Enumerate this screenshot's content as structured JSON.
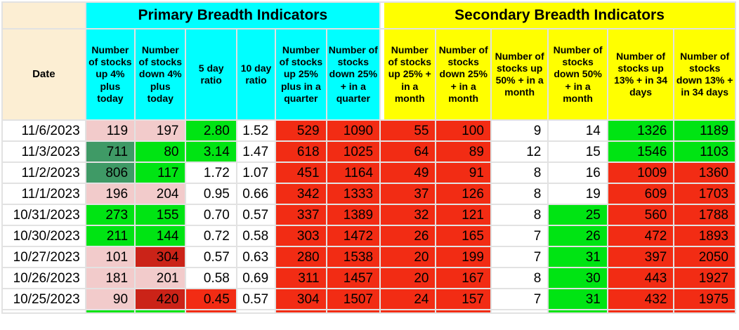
{
  "colors": {
    "pink": "#f2cbcb",
    "green": "#00e413",
    "seagreen": "#3f9a66",
    "red": "#f22c14",
    "darkred": "#cb2318",
    "white": "#ffffff",
    "cyan": "#00ffff",
    "yellow": "#ffff00",
    "tan": "#fceed3"
  },
  "table": {
    "sections": [
      {
        "title": "Primary Breadth Indicators",
        "color": "#00ffff"
      },
      {
        "title": "Secondary Breadth Indicators",
        "color": "#ffff00"
      }
    ],
    "date_header": "Date",
    "columns": [
      {
        "label": "Number of stocks up 4% plus today",
        "section": "primary"
      },
      {
        "label": "Number of stocks down 4% plus today",
        "section": "primary"
      },
      {
        "label": "5 day ratio",
        "section": "primary"
      },
      {
        "label": "10 day ratio",
        "section": "primary"
      },
      {
        "label": "Number of stocks up 25% plus in a quarter",
        "section": "primary"
      },
      {
        "label": "Number of stocks down 25% + in a quarter",
        "section": "primary"
      },
      {
        "label": "Number of stocks up 25% + in a month",
        "section": "secondary"
      },
      {
        "label": "Number of stocks down 25% + in a month",
        "section": "secondary"
      },
      {
        "label": "Number of stocks up 50% + in a month",
        "section": "secondary"
      },
      {
        "label": "Number of stocks down 50% + in a month",
        "section": "secondary"
      },
      {
        "label": "Number of stocks up 13% + in 34 days",
        "section": "secondary"
      },
      {
        "label": "Number of stocks down 13% + in 34 days",
        "section": "secondary"
      }
    ],
    "rows": [
      {
        "date": "11/6/2023",
        "values": [
          "119",
          "197",
          "2.80",
          "1.52",
          "529",
          "1090",
          "55",
          "100",
          "9",
          "14",
          "1326",
          "1189"
        ],
        "colors": [
          "pink",
          "pink",
          "green",
          "white",
          "red",
          "red",
          "red",
          "red",
          "white",
          "white",
          "green",
          "green"
        ]
      },
      {
        "date": "11/3/2023",
        "values": [
          "711",
          "80",
          "3.14",
          "1.47",
          "618",
          "1025",
          "64",
          "89",
          "12",
          "15",
          "1546",
          "1103"
        ],
        "colors": [
          "seagreen",
          "green",
          "green",
          "white",
          "red",
          "red",
          "red",
          "red",
          "white",
          "white",
          "green",
          "green"
        ]
      },
      {
        "date": "11/2/2023",
        "values": [
          "806",
          "117",
          "1.72",
          "1.07",
          "451",
          "1164",
          "49",
          "91",
          "8",
          "16",
          "1009",
          "1360"
        ],
        "colors": [
          "seagreen",
          "green",
          "white",
          "white",
          "red",
          "red",
          "red",
          "red",
          "white",
          "white",
          "red",
          "red"
        ]
      },
      {
        "date": "11/1/2023",
        "values": [
          "196",
          "204",
          "0.95",
          "0.66",
          "342",
          "1333",
          "37",
          "126",
          "8",
          "19",
          "609",
          "1703"
        ],
        "colors": [
          "pink",
          "pink",
          "white",
          "white",
          "red",
          "red",
          "red",
          "red",
          "white",
          "white",
          "red",
          "red"
        ]
      },
      {
        "date": "10/31/2023",
        "values": [
          "273",
          "155",
          "0.70",
          "0.57",
          "337",
          "1389",
          "32",
          "121",
          "8",
          "25",
          "560",
          "1788"
        ],
        "colors": [
          "green",
          "green",
          "white",
          "white",
          "red",
          "red",
          "red",
          "red",
          "white",
          "green",
          "red",
          "red"
        ]
      },
      {
        "date": "10/30/2023",
        "values": [
          "211",
          "144",
          "0.72",
          "0.58",
          "303",
          "1472",
          "26",
          "165",
          "7",
          "26",
          "472",
          "1893"
        ],
        "colors": [
          "green",
          "green",
          "white",
          "white",
          "red",
          "red",
          "red",
          "red",
          "white",
          "green",
          "red",
          "red"
        ]
      },
      {
        "date": "10/27/2023",
        "values": [
          "101",
          "304",
          "0.57",
          "0.63",
          "280",
          "1538",
          "20",
          "199",
          "7",
          "31",
          "397",
          "2050"
        ],
        "colors": [
          "pink",
          "darkred",
          "white",
          "white",
          "red",
          "red",
          "red",
          "red",
          "white",
          "green",
          "red",
          "red"
        ]
      },
      {
        "date": "10/26/2023",
        "values": [
          "181",
          "201",
          "0.58",
          "0.69",
          "311",
          "1457",
          "20",
          "167",
          "8",
          "30",
          "443",
          "1927"
        ],
        "colors": [
          "pink",
          "pink",
          "white",
          "white",
          "red",
          "red",
          "red",
          "red",
          "white",
          "green",
          "red",
          "red"
        ]
      },
      {
        "date": "10/25/2023",
        "values": [
          "90",
          "420",
          "0.45",
          "0.57",
          "304",
          "1507",
          "24",
          "157",
          "7",
          "31",
          "432",
          "1975"
        ],
        "colors": [
          "pink",
          "darkred",
          "red",
          "white",
          "red",
          "red",
          "red",
          "red",
          "white",
          "green",
          "red",
          "red"
        ]
      }
    ],
    "partial_row_colors": [
      "green",
      "green",
      "red",
      "white",
      "red",
      "red",
      "red",
      "red",
      "white",
      "green",
      "red",
      "red"
    ]
  }
}
